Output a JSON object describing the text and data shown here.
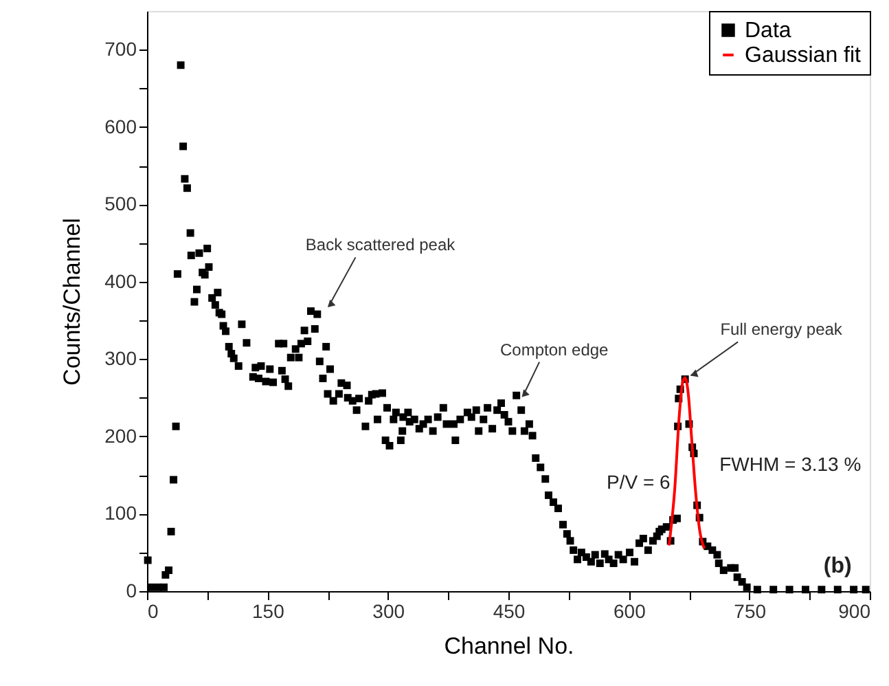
{
  "chart_data": {
    "type": "scatter",
    "xlabel": "Channel No.",
    "ylabel": "Counts/Channel",
    "xlim": [
      0,
      900
    ],
    "ylim": [
      0,
      750
    ],
    "xticks": [
      0,
      {
        "value": 75,
        "label": null
      },
      150,
      {
        "value": 225,
        "label": null
      },
      300,
      {
        "value": 375,
        "label": null
      },
      450,
      {
        "value": 525,
        "label": null
      },
      600,
      {
        "value": 675,
        "label": null
      },
      750,
      {
        "value": 825,
        "label": null
      },
      900
    ],
    "yticks": [
      0,
      {
        "value": 50,
        "label": null
      },
      100,
      {
        "value": 150,
        "label": null
      },
      200,
      {
        "value": 250,
        "label": null
      },
      300,
      {
        "value": 350,
        "label": null
      },
      400,
      {
        "value": 450,
        "label": null
      },
      500,
      {
        "value": 550,
        "label": null
      },
      600,
      {
        "value": 650,
        "label": null
      },
      700
    ],
    "grid": false,
    "legend": "top right",
    "series": [
      {
        "name": "Data",
        "type": "scatter",
        "marker": "square",
        "color": "#000000",
        "x": [
          1,
          5,
          14,
          21,
          23,
          27,
          30,
          33,
          36,
          38,
          42,
          45,
          47,
          50,
          54,
          55,
          59,
          62,
          65,
          69,
          72,
          75,
          77,
          81,
          85,
          88,
          90,
          93,
          95,
          98,
          102,
          105,
          108,
          114,
          118,
          124,
          132,
          135,
          139,
          142,
          148,
          153,
          157,
          164,
          168,
          170,
          172,
          176,
          179,
          185,
          189,
          192,
          196,
          200,
          204,
          209,
          212,
          215,
          219,
          223,
          225,
          228,
          232,
          239,
          242,
          249,
          250,
          256,
          261,
          264,
          272,
          276,
          280,
          285,
          287,
          293,
          297,
          299,
          302,
          307,
          310,
          316,
          318,
          319,
          325,
          327,
          333,
          339,
          344,
          350,
          356,
          362,
          369,
          373,
          382,
          384,
          390,
          399,
          404,
          410,
          413,
          419,
          424,
          430,
          436,
          441,
          445,
          450,
          455,
          460,
          466,
          470,
          476,
          480,
          484,
          490,
          496,
          500,
          506,
          512,
          518,
          523,
          527,
          531,
          536,
          541,
          547,
          553,
          558,
          564,
          570,
          575,
          581,
          587,
          593,
          601,
          607,
          613,
          618,
          624,
          630,
          635,
          638,
          641,
          647,
          652,
          655,
          660,
          661,
          662,
          664,
          670,
          675,
          679,
          681,
          685,
          688,
          692,
          698,
          704,
          710,
          712,
          718,
          727,
          732,
          735,
          741,
          747,
          760,
          780,
          800,
          820,
          840,
          860,
          880,
          895
        ],
        "values": [
          40,
          5,
          5,
          5,
          21,
          27,
          77,
          144,
          213,
          410,
          680,
          575,
          533,
          521,
          463,
          434,
          374,
          390,
          437,
          412,
          409,
          443,
          419,
          379,
          370,
          386,
          360,
          358,
          343,
          336,
          316,
          307,
          301,
          291,
          345,
          321,
          277,
          289,
          275,
          291,
          271,
          287,
          270,
          320,
          285,
          320,
          274,
          265,
          302,
          313,
          302,
          320,
          337,
          323,
          362,
          339,
          358,
          297,
          275,
          316,
          255,
          287,
          246,
          255,
          269,
          266,
          250,
          246,
          234,
          249,
          213,
          246,
          254,
          255,
          222,
          256,
          195,
          237,
          188,
          222,
          231,
          195,
          207,
          225,
          231,
          219,
          222,
          210,
          216,
          222,
          207,
          225,
          237,
          216,
          216,
          195,
          222,
          231,
          225,
          234,
          207,
          222,
          237,
          210,
          234,
          243,
          228,
          219,
          207,
          253,
          234,
          207,
          216,
          201,
          172,
          160,
          145,
          124,
          115,
          107,
          86,
          74,
          65,
          53,
          41,
          50,
          44,
          38,
          47,
          36,
          48,
          41,
          36,
          47,
          41,
          50,
          38,
          62,
          68,
          53,
          65,
          71,
          77,
          80,
          83,
          65,
          92,
          94,
          213,
          249,
          261,
          274,
          216,
          186,
          178,
          111,
          95,
          64,
          58,
          53,
          47,
          36,
          27,
          30,
          30,
          18,
          12,
          5,
          2,
          2,
          2,
          2,
          2,
          2,
          2,
          2
        ]
      },
      {
        "name": "Gaussian fit",
        "type": "line",
        "color": "#ff0000",
        "line_style": "solid",
        "x": [
          650,
          657,
          663,
          667,
          670,
          674,
          678,
          683,
          688,
          694
        ],
        "values": [
          59,
          130,
          230,
          270,
          276,
          255,
          200,
          130,
          80,
          55
        ]
      }
    ],
    "annotations": [
      {
        "text": "Back scattered peak",
        "x": 222,
        "y": 364
      },
      {
        "text": "Compton edge",
        "x": 466,
        "y": 250
      },
      {
        "text": "Full energy peak",
        "x": 670,
        "y": 276
      },
      "P/V = 6",
      "FWHM = 3.13 %",
      "(b)"
    ]
  }
}
